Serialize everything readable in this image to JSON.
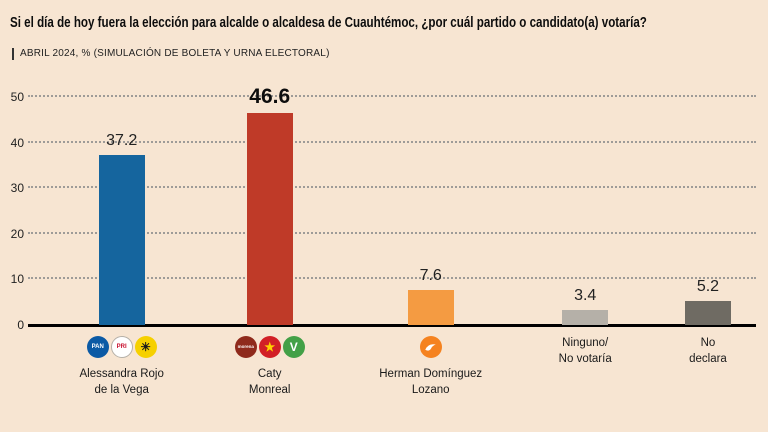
{
  "header": {
    "title": "Si el día de hoy fuera la elección para alcalde o alcaldesa de Cuauhtémoc, ¿por cuál partido o candidato(a) votaría?",
    "subtitle": "ABRIL 2024, % (SIMULACIÓN DE BOLETA Y URNA ELECTORAL)"
  },
  "chart_data": {
    "type": "bar",
    "title": "Si el día de hoy fuera la elección para alcalde o alcaldesa de Cuauhtémoc, ¿por cuál partido o candidato(a) votaría?",
    "subtitle": "ABRIL 2024, % (SIMULACIÓN DE BOLETA Y URNA ELECTORAL)",
    "unit": "%",
    "ylim": [
      0,
      50
    ],
    "yticks": [
      0,
      10,
      20,
      30,
      40,
      50
    ],
    "grid": true,
    "grid_style": "dotted",
    "legend": "none",
    "background_color": "#f7e5d2",
    "categories": [
      "Alessandra Rojo de la Vega",
      "Caty Monreal",
      "Herman Domínguez Lozano",
      "Ninguno/No votaría",
      "No declara"
    ],
    "values": [
      37.2,
      46.6,
      7.6,
      3.4,
      5.2
    ],
    "bars": [
      {
        "value": 37.2,
        "value_label": "37.2",
        "emphasis": false,
        "color": "#15659e",
        "name_lines": [
          "Alessandra Rojo",
          "de la Vega"
        ],
        "logos": [
          {
            "name": "pan-logo",
            "bg": "#0b5aa5",
            "fg": "#ffffff",
            "glyph": "PAN"
          },
          {
            "name": "pri-logo",
            "bg": "#ffffff",
            "fg": "#c8102e",
            "glyph": "PRI",
            "border": "#b5b0a8"
          },
          {
            "name": "prd-logo",
            "bg": "#f6d000",
            "fg": "#1a1a1a",
            "glyph": "☀"
          }
        ]
      },
      {
        "value": 46.6,
        "value_label": "46.6",
        "emphasis": true,
        "color": "#bf3a28",
        "name_lines": [
          "Caty",
          "Monreal"
        ],
        "logos": [
          {
            "name": "morena-logo",
            "bg": "#8f2a1c",
            "fg": "#ffffff",
            "glyph": "morena"
          },
          {
            "name": "pt-logo",
            "bg": "#d21f26",
            "fg": "#ffd200",
            "glyph": "★"
          },
          {
            "name": "pvem-logo",
            "bg": "#43a047",
            "fg": "#ffffff",
            "glyph": "V"
          }
        ]
      },
      {
        "value": 7.6,
        "value_label": "7.6",
        "emphasis": false,
        "color": "#f49b42",
        "name_lines": [
          "Herman Domínguez",
          "Lozano"
        ],
        "logos": [
          {
            "name": "mc-eagle-logo",
            "bg": "#f5821f",
            "fg": "#ffffff",
            "shape": "eagle"
          }
        ]
      },
      {
        "value": 3.4,
        "value_label": "3.4",
        "emphasis": false,
        "color": "#b5b0a8",
        "name_lines": [
          "Ninguno/",
          "No votaría"
        ],
        "logos": []
      },
      {
        "value": 5.2,
        "value_label": "5.2",
        "emphasis": false,
        "color": "#6f6b63",
        "name_lines": [
          "No",
          "declara"
        ],
        "logos": []
      }
    ]
  }
}
